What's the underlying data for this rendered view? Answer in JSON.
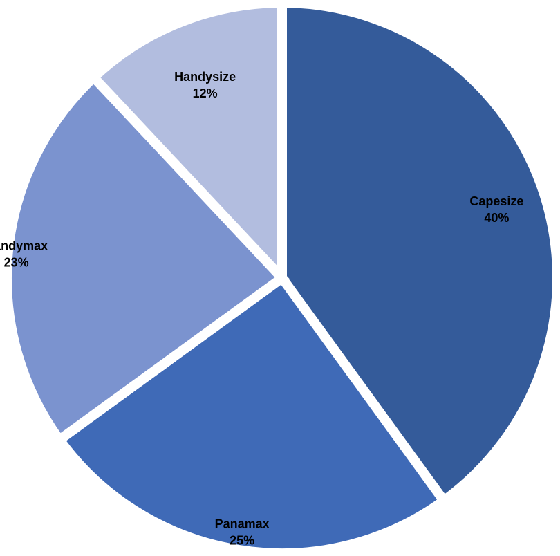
{
  "chart_data": {
    "type": "pie",
    "title": "",
    "slices": [
      {
        "label": "Capesize",
        "value": 40,
        "value_label": "40%",
        "color": "#345b9a"
      },
      {
        "label": "Panamax",
        "value": 25,
        "value_label": "25%",
        "color": "#3f6ab7"
      },
      {
        "label": "Handymax",
        "value": 23,
        "value_label": "23%",
        "color": "#7b93cf"
      },
      {
        "label": "Handysize",
        "value": 12,
        "value_label": "12%",
        "color": "#b2bddf"
      }
    ],
    "start_angle": "12 o'clock",
    "direction": "clockwise",
    "legend": "none",
    "labels": "on slices"
  }
}
